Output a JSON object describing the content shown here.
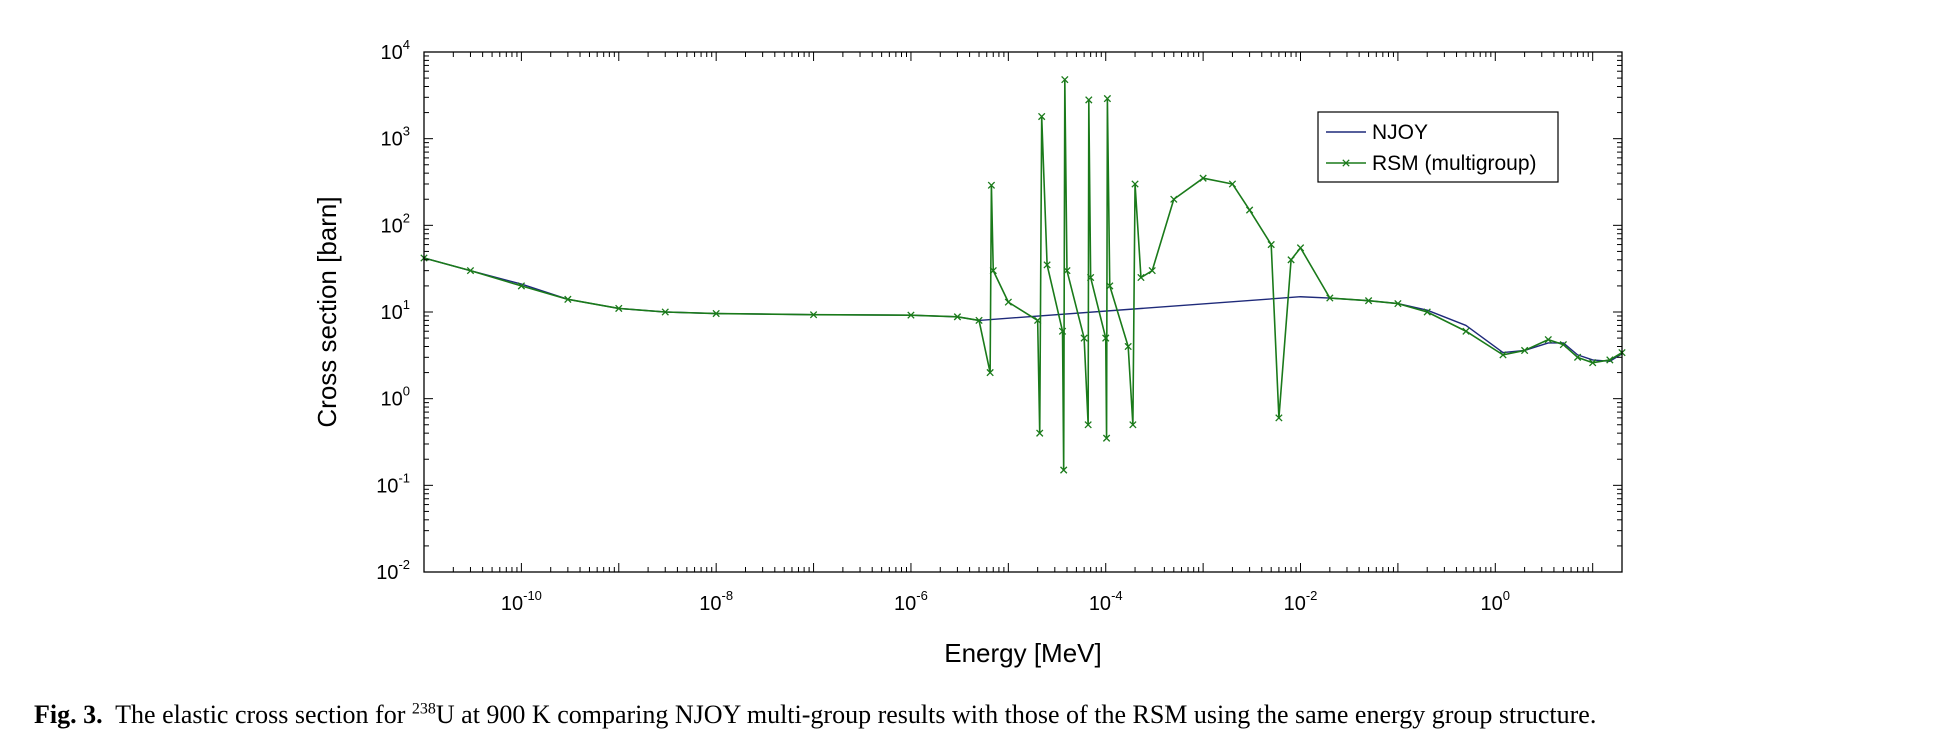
{
  "chart_data": {
    "type": "line",
    "title": "",
    "xlabel": "Energy [MeV]",
    "ylabel": "Cross section [barn]",
    "x_scale": "log",
    "y_scale": "log",
    "xlim": [
      1e-11,
      20
    ],
    "ylim": [
      0.01,
      10000
    ],
    "x_ticks": [
      {
        "value": 1e-10,
        "base": "10",
        "exp": "-10"
      },
      {
        "value": 1e-08,
        "base": "10",
        "exp": "-8"
      },
      {
        "value": 1e-06,
        "base": "10",
        "exp": "-6"
      },
      {
        "value": 0.0001,
        "base": "10",
        "exp": "-4"
      },
      {
        "value": 0.01,
        "base": "10",
        "exp": "-2"
      },
      {
        "value": 1,
        "base": "10",
        "exp": "0"
      }
    ],
    "y_ticks": [
      {
        "value": 0.01,
        "base": "10",
        "exp": "-2"
      },
      {
        "value": 0.1,
        "base": "10",
        "exp": "-1"
      },
      {
        "value": 1,
        "base": "10",
        "exp": "0"
      },
      {
        "value": 10,
        "base": "10",
        "exp": "1"
      },
      {
        "value": 100,
        "base": "10",
        "exp": "2"
      },
      {
        "value": 1000,
        "base": "10",
        "exp": "3"
      },
      {
        "value": 10000,
        "base": "10",
        "exp": "4"
      }
    ],
    "grid": false,
    "legend_position": "top-right",
    "series": [
      {
        "name": "NJOY",
        "color": "#1f2a7a",
        "marker": "none",
        "x": [
          1e-11,
          3e-11,
          1e-10,
          3e-10,
          1e-09,
          3e-09,
          1e-08,
          1e-07,
          1e-06,
          3e-06,
          5e-06,
          0.01,
          0.02,
          0.05,
          0.1,
          0.2,
          0.5,
          1.2,
          2,
          3.5,
          5,
          7,
          10,
          15,
          20
        ],
        "y": [
          42,
          30,
          21,
          14,
          11,
          10,
          9.6,
          9.3,
          9.2,
          8.8,
          8.0,
          15,
          14.5,
          13.5,
          12.5,
          10.5,
          7,
          3.4,
          3.6,
          4.4,
          4.4,
          3.2,
          2.8,
          2.7,
          3.3
        ]
      },
      {
        "name": "RSM (multigroup)",
        "color": "#1a7a1a",
        "marker": "x",
        "x": [
          1e-11,
          3e-11,
          1e-10,
          3e-10,
          1e-09,
          3e-09,
          1e-08,
          1e-07,
          1e-06,
          3e-06,
          5e-06,
          6.5e-06,
          6.7e-06,
          7e-06,
          1e-05,
          2e-05,
          2.1e-05,
          2.2e-05,
          2.5e-05,
          3.6e-05,
          3.7e-05,
          3.8e-05,
          4e-05,
          6e-05,
          6.6e-05,
          6.7e-05,
          7e-05,
          0.0001,
          0.000102,
          0.000104,
          0.00011,
          0.00017,
          0.00019,
          0.0002,
          0.00023,
          0.0003,
          0.0005,
          0.001,
          0.002,
          0.003,
          0.005,
          0.006,
          0.008,
          0.01,
          0.02,
          0.05,
          0.1,
          0.2,
          0.5,
          1.2,
          2,
          3.5,
          5,
          7,
          10,
          15,
          20
        ],
        "y": [
          42,
          30,
          20,
          14,
          11,
          10,
          9.6,
          9.3,
          9.2,
          8.8,
          8.0,
          2.0,
          290,
          30,
          13,
          8,
          0.4,
          1800,
          35,
          6,
          0.15,
          4800,
          30,
          5,
          0.5,
          2800,
          25,
          5,
          0.35,
          2900,
          20,
          4,
          0.5,
          300,
          25,
          30,
          200,
          350,
          300,
          150,
          60,
          0.6,
          40,
          55,
          14.5,
          13.5,
          12.5,
          10,
          6,
          3.2,
          3.6,
          4.8,
          4.2,
          3.0,
          2.6,
          2.8,
          3.4
        ]
      }
    ],
    "annotations": []
  },
  "caption": {
    "fig_label": "Fig. 3.",
    "text_before": "The elastic cross section for ",
    "isotope_mass": "238",
    "text_after": "U at 900 K comparing NJOY multi-group results with those of the RSM using the same energy group structure."
  }
}
